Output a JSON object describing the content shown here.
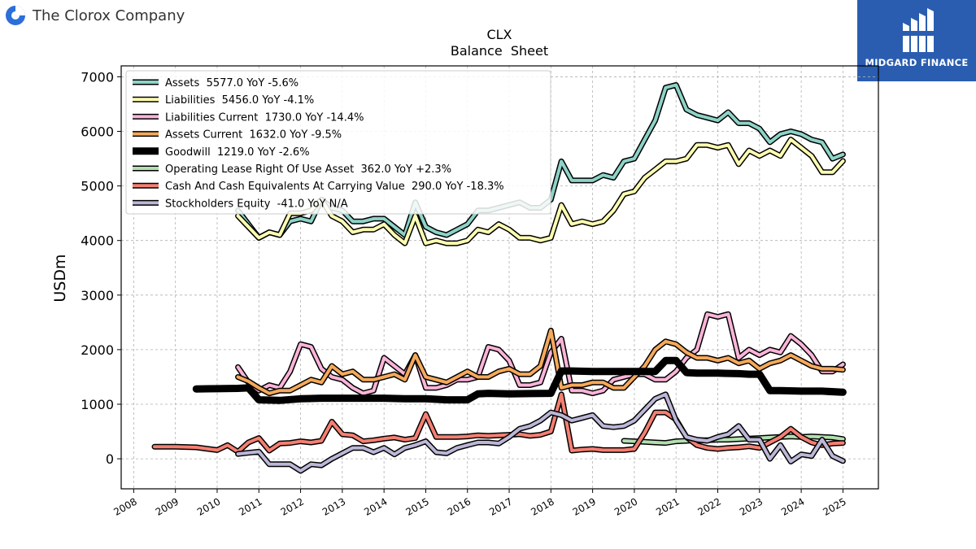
{
  "company": {
    "name": "The Clorox Company",
    "logo_icon": "clorox-logo-icon"
  },
  "brand": {
    "name": "MIDGARD FINANCE",
    "icon": "midgard-logo-icon",
    "color": "#2a5db0"
  },
  "chart_data": {
    "type": "line",
    "title": "CLX",
    "subtitle": "Balance  Sheet",
    "xlabel": "",
    "ylabel": "USDm",
    "xlim": [
      2007.7,
      2025.85
    ],
    "ylim": [
      -550,
      7200
    ],
    "xticks": [
      2008,
      2009,
      2010,
      2011,
      2012,
      2013,
      2014,
      2015,
      2016,
      2017,
      2018,
      2019,
      2020,
      2021,
      2022,
      2023,
      2024,
      2025
    ],
    "yticks": [
      0,
      1000,
      2000,
      3000,
      4000,
      5000,
      6000,
      7000
    ],
    "grid": true,
    "legend_position": "top-left",
    "series": [
      {
        "name": "Assets",
        "label": "Assets  5577.0 YoY -5.6%",
        "color": "#8dd3c7",
        "x": [
          2010.5,
          2010.75,
          2011.0,
          2011.25,
          2011.5,
          2011.75,
          2012.0,
          2012.25,
          2012.5,
          2012.75,
          2013.0,
          2013.25,
          2013.5,
          2013.75,
          2014.0,
          2014.25,
          2014.5,
          2014.75,
          2015.0,
          2015.25,
          2015.5,
          2015.75,
          2016.0,
          2016.25,
          2016.5,
          2016.75,
          2017.0,
          2017.25,
          2017.5,
          2017.75,
          2018.0,
          2018.25,
          2018.5,
          2018.75,
          2019.0,
          2019.25,
          2019.5,
          2019.75,
          2020.0,
          2020.25,
          2020.5,
          2020.75,
          2021.0,
          2021.25,
          2021.5,
          2021.75,
          2022.0,
          2022.25,
          2022.5,
          2022.75,
          2023.0,
          2023.25,
          2023.5,
          2023.75,
          2024.0,
          2024.25,
          2024.5,
          2024.75,
          2025.0
        ],
        "y": [
          4550,
          4300,
          4050,
          4150,
          4100,
          4350,
          4400,
          4350,
          4750,
          4600,
          4550,
          4350,
          4350,
          4400,
          4400,
          4250,
          4100,
          4700,
          4250,
          4150,
          4100,
          4200,
          4300,
          4550,
          4550,
          4600,
          4650,
          4700,
          4600,
          4600,
          4750,
          5450,
          5100,
          5100,
          5100,
          5200,
          5150,
          5450,
          5500,
          5850,
          6200,
          6800,
          6850,
          6400,
          6300,
          6250,
          6200,
          6350,
          6150,
          6150,
          6050,
          5800,
          5950,
          6000,
          5950,
          5850,
          5800,
          5500,
          5577
        ]
      },
      {
        "name": "Liabilities",
        "label": "Liabilities  5456.0 YoY -4.1%",
        "color": "#ffffb3",
        "x": [
          2010.5,
          2010.75,
          2011.0,
          2011.25,
          2011.5,
          2011.75,
          2012.0,
          2012.25,
          2012.5,
          2012.75,
          2013.0,
          2013.25,
          2013.5,
          2013.75,
          2014.0,
          2014.25,
          2014.5,
          2014.75,
          2015.0,
          2015.25,
          2015.5,
          2015.75,
          2016.0,
          2016.25,
          2016.5,
          2016.75,
          2017.0,
          2017.25,
          2017.5,
          2017.75,
          2018.0,
          2018.25,
          2018.5,
          2018.75,
          2019.0,
          2019.25,
          2019.5,
          2019.75,
          2020.0,
          2020.25,
          2020.5,
          2020.75,
          2021.0,
          2021.25,
          2021.5,
          2021.75,
          2022.0,
          2022.25,
          2022.5,
          2022.75,
          2023.0,
          2023.25,
          2023.5,
          2023.75,
          2024.0,
          2024.25,
          2024.5,
          2024.75,
          2025.0
        ],
        "y": [
          4450,
          4250,
          4050,
          4150,
          4100,
          4500,
          4500,
          4550,
          4750,
          4450,
          4350,
          4150,
          4200,
          4200,
          4300,
          4100,
          3950,
          4450,
          3950,
          4000,
          3950,
          3950,
          4000,
          4200,
          4150,
          4300,
          4200,
          4050,
          4050,
          4000,
          4050,
          4650,
          4300,
          4350,
          4300,
          4350,
          4550,
          4850,
          4900,
          5150,
          5300,
          5450,
          5450,
          5500,
          5750,
          5750,
          5700,
          5750,
          5400,
          5650,
          5550,
          5650,
          5550,
          5850,
          5700,
          5550,
          5250,
          5250,
          5456
        ]
      },
      {
        "name": "Liabilities Current",
        "label": "Liabilities Current  1730.0 YoY -14.4%",
        "color": "#fbb4d9",
        "x": [
          2010.5,
          2010.75,
          2011.0,
          2011.25,
          2011.5,
          2011.75,
          2012.0,
          2012.25,
          2012.5,
          2012.75,
          2013.0,
          2013.25,
          2013.5,
          2013.75,
          2014.0,
          2014.25,
          2014.5,
          2014.75,
          2015.0,
          2015.25,
          2015.5,
          2015.75,
          2016.0,
          2016.25,
          2016.5,
          2016.75,
          2017.0,
          2017.25,
          2017.5,
          2017.75,
          2018.0,
          2018.25,
          2018.5,
          2018.75,
          2019.0,
          2019.25,
          2019.5,
          2019.75,
          2020.0,
          2020.25,
          2020.5,
          2020.75,
          2021.0,
          2021.25,
          2021.5,
          2021.75,
          2022.0,
          2022.25,
          2022.5,
          2022.75,
          2023.0,
          2023.25,
          2023.5,
          2023.75,
          2024.0,
          2024.25,
          2024.5,
          2024.75,
          2025.0
        ],
        "y": [
          1680,
          1400,
          1250,
          1350,
          1300,
          1600,
          2100,
          2050,
          1650,
          1500,
          1450,
          1300,
          1200,
          1250,
          1850,
          1700,
          1550,
          1900,
          1300,
          1300,
          1350,
          1450,
          1450,
          1500,
          2050,
          2000,
          1800,
          1350,
          1350,
          1400,
          1950,
          2200,
          1250,
          1250,
          1200,
          1250,
          1450,
          1500,
          1550,
          1550,
          1450,
          1450,
          1600,
          1850,
          2000,
          2650,
          2600,
          2650,
          1850,
          2000,
          1900,
          2000,
          1950,
          2250,
          2100,
          1900,
          1600,
          1600,
          1730
        ]
      },
      {
        "name": "Assets Current",
        "label": "Assets Current  1632.0 YoY -9.5%",
        "color": "#f5a95a",
        "x": [
          2010.5,
          2010.75,
          2011.0,
          2011.25,
          2011.5,
          2011.75,
          2012.0,
          2012.25,
          2012.5,
          2012.75,
          2013.0,
          2013.25,
          2013.5,
          2013.75,
          2014.0,
          2014.25,
          2014.5,
          2014.75,
          2015.0,
          2015.25,
          2015.5,
          2015.75,
          2016.0,
          2016.25,
          2016.5,
          2016.75,
          2017.0,
          2017.25,
          2017.5,
          2017.75,
          2018.0,
          2018.25,
          2018.5,
          2018.75,
          2019.0,
          2019.25,
          2019.5,
          2019.75,
          2020.0,
          2020.25,
          2020.5,
          2020.75,
          2021.0,
          2021.25,
          2021.5,
          2021.75,
          2022.0,
          2022.25,
          2022.5,
          2022.75,
          2023.0,
          2023.25,
          2023.5,
          2023.75,
          2024.0,
          2024.25,
          2024.5,
          2024.75,
          2025.0
        ],
        "y": [
          1500,
          1420,
          1300,
          1200,
          1250,
          1250,
          1350,
          1450,
          1400,
          1700,
          1550,
          1600,
          1450,
          1450,
          1500,
          1550,
          1450,
          1900,
          1500,
          1450,
          1400,
          1500,
          1600,
          1500,
          1500,
          1600,
          1650,
          1550,
          1550,
          1700,
          2350,
          1300,
          1350,
          1350,
          1400,
          1400,
          1300,
          1300,
          1500,
          1700,
          2000,
          2150,
          2100,
          1950,
          1850,
          1850,
          1800,
          1850,
          1750,
          1800,
          1650,
          1750,
          1800,
          1900,
          1800,
          1700,
          1650,
          1650,
          1632
        ]
      },
      {
        "name": "Goodwill",
        "label": "Goodwill  1219.0 YoY -2.6%",
        "color": "#000000",
        "x": [
          2009.5,
          2010.0,
          2010.5,
          2010.75,
          2011.0,
          2011.5,
          2012.0,
          2012.5,
          2013.0,
          2013.5,
          2014.0,
          2014.5,
          2015.0,
          2015.5,
          2016.0,
          2016.25,
          2016.5,
          2017.0,
          2017.5,
          2018.0,
          2018.25,
          2018.5,
          2019.0,
          2019.5,
          2020.0,
          2020.5,
          2020.75,
          2021.0,
          2021.25,
          2021.5,
          2022.0,
          2022.5,
          2022.75,
          2023.0,
          2023.25,
          2023.5,
          2024.0,
          2024.5,
          2025.0
        ],
        "y": [
          1280,
          1285,
          1290,
          1300,
          1080,
          1070,
          1100,
          1110,
          1110,
          1110,
          1110,
          1100,
          1100,
          1080,
          1080,
          1190,
          1200,
          1190,
          1195,
          1200,
          1610,
          1610,
          1600,
          1600,
          1600,
          1600,
          1800,
          1800,
          1580,
          1570,
          1570,
          1560,
          1550,
          1550,
          1250,
          1250,
          1240,
          1240,
          1219
        ]
      },
      {
        "name": "Operating Lease Right Of Use Asset",
        "label": "Operating Lease Right Of Use Asset  362.0 YoY +2.3%",
        "color": "#b3dfb0",
        "x": [
          2019.75,
          2020.0,
          2020.25,
          2020.5,
          2020.75,
          2021.0,
          2021.25,
          2021.5,
          2021.75,
          2022.0,
          2022.25,
          2022.5,
          2022.75,
          2023.0,
          2023.25,
          2023.5,
          2023.75,
          2024.0,
          2024.25,
          2024.5,
          2024.75,
          2025.0
        ],
        "y": [
          330,
          320,
          310,
          300,
          290,
          320,
          330,
          340,
          340,
          350,
          350,
          360,
          370,
          380,
          390,
          400,
          410,
          400,
          410,
          400,
          390,
          362
        ]
      },
      {
        "name": "Cash And Cash Equivalents At Carrying Value",
        "label": "Cash And Cash Equivalents At Carrying Value  290.0 YoY -18.3%",
        "color": "#f47f72",
        "x": [
          2008.5,
          2009.0,
          2009.5,
          2010.0,
          2010.25,
          2010.5,
          2010.75,
          2011.0,
          2011.25,
          2011.5,
          2011.75,
          2012.0,
          2012.25,
          2012.5,
          2012.75,
          2013.0,
          2013.25,
          2013.5,
          2013.75,
          2014.0,
          2014.25,
          2014.5,
          2014.75,
          2015.0,
          2015.25,
          2015.5,
          2015.75,
          2016.0,
          2016.25,
          2016.5,
          2016.75,
          2017.0,
          2017.25,
          2017.5,
          2017.75,
          2018.0,
          2018.25,
          2018.5,
          2018.75,
          2019.0,
          2019.25,
          2019.5,
          2019.75,
          2020.0,
          2020.25,
          2020.5,
          2020.75,
          2021.0,
          2021.25,
          2021.5,
          2021.75,
          2022.0,
          2022.25,
          2022.5,
          2022.75,
          2023.0,
          2023.25,
          2023.5,
          2023.75,
          2024.0,
          2024.25,
          2024.5,
          2024.75,
          2025.0
        ],
        "y": [
          220,
          220,
          210,
          160,
          250,
          130,
          300,
          380,
          150,
          280,
          290,
          320,
          300,
          330,
          680,
          450,
          430,
          320,
          340,
          370,
          390,
          350,
          380,
          820,
          400,
          400,
          400,
          410,
          430,
          420,
          430,
          440,
          450,
          420,
          440,
          500,
          1180,
          150,
          170,
          180,
          160,
          160,
          160,
          180,
          480,
          850,
          850,
          720,
          400,
          250,
          200,
          180,
          200,
          210,
          230,
          200,
          300,
          400,
          550,
          400,
          300,
          250,
          280,
          290
        ]
      },
      {
        "name": "Stockholders Equity",
        "label": "Stockholders Equity  -41.0 YoY N/A",
        "color": "#bcb7d7",
        "x": [
          2010.5,
          2010.75,
          2011.0,
          2011.25,
          2011.5,
          2011.75,
          2012.0,
          2012.25,
          2012.5,
          2012.75,
          2013.0,
          2013.25,
          2013.5,
          2013.75,
          2014.0,
          2014.25,
          2014.5,
          2014.75,
          2015.0,
          2015.25,
          2015.5,
          2015.75,
          2016.0,
          2016.25,
          2016.5,
          2016.75,
          2017.0,
          2017.25,
          2017.5,
          2017.75,
          2018.0,
          2018.25,
          2018.5,
          2018.75,
          2019.0,
          2019.25,
          2019.5,
          2019.75,
          2020.0,
          2020.25,
          2020.5,
          2020.75,
          2021.0,
          2021.25,
          2021.5,
          2021.75,
          2022.0,
          2022.25,
          2022.5,
          2022.75,
          2023.0,
          2023.25,
          2023.5,
          2023.75,
          2024.0,
          2024.25,
          2024.5,
          2024.75,
          2025.0
        ],
        "y": [
          90,
          110,
          130,
          -100,
          -100,
          -100,
          -220,
          -100,
          -120,
          0,
          100,
          200,
          200,
          120,
          200,
          80,
          200,
          250,
          320,
          120,
          100,
          200,
          250,
          300,
          300,
          280,
          400,
          550,
          600,
          700,
          850,
          800,
          700,
          750,
          800,
          600,
          580,
          600,
          700,
          900,
          1100,
          1180,
          700,
          400,
          350,
          330,
          400,
          450,
          600,
          350,
          350,
          0,
          250,
          -50,
          80,
          50,
          350,
          50,
          -41
        ]
      }
    ]
  }
}
